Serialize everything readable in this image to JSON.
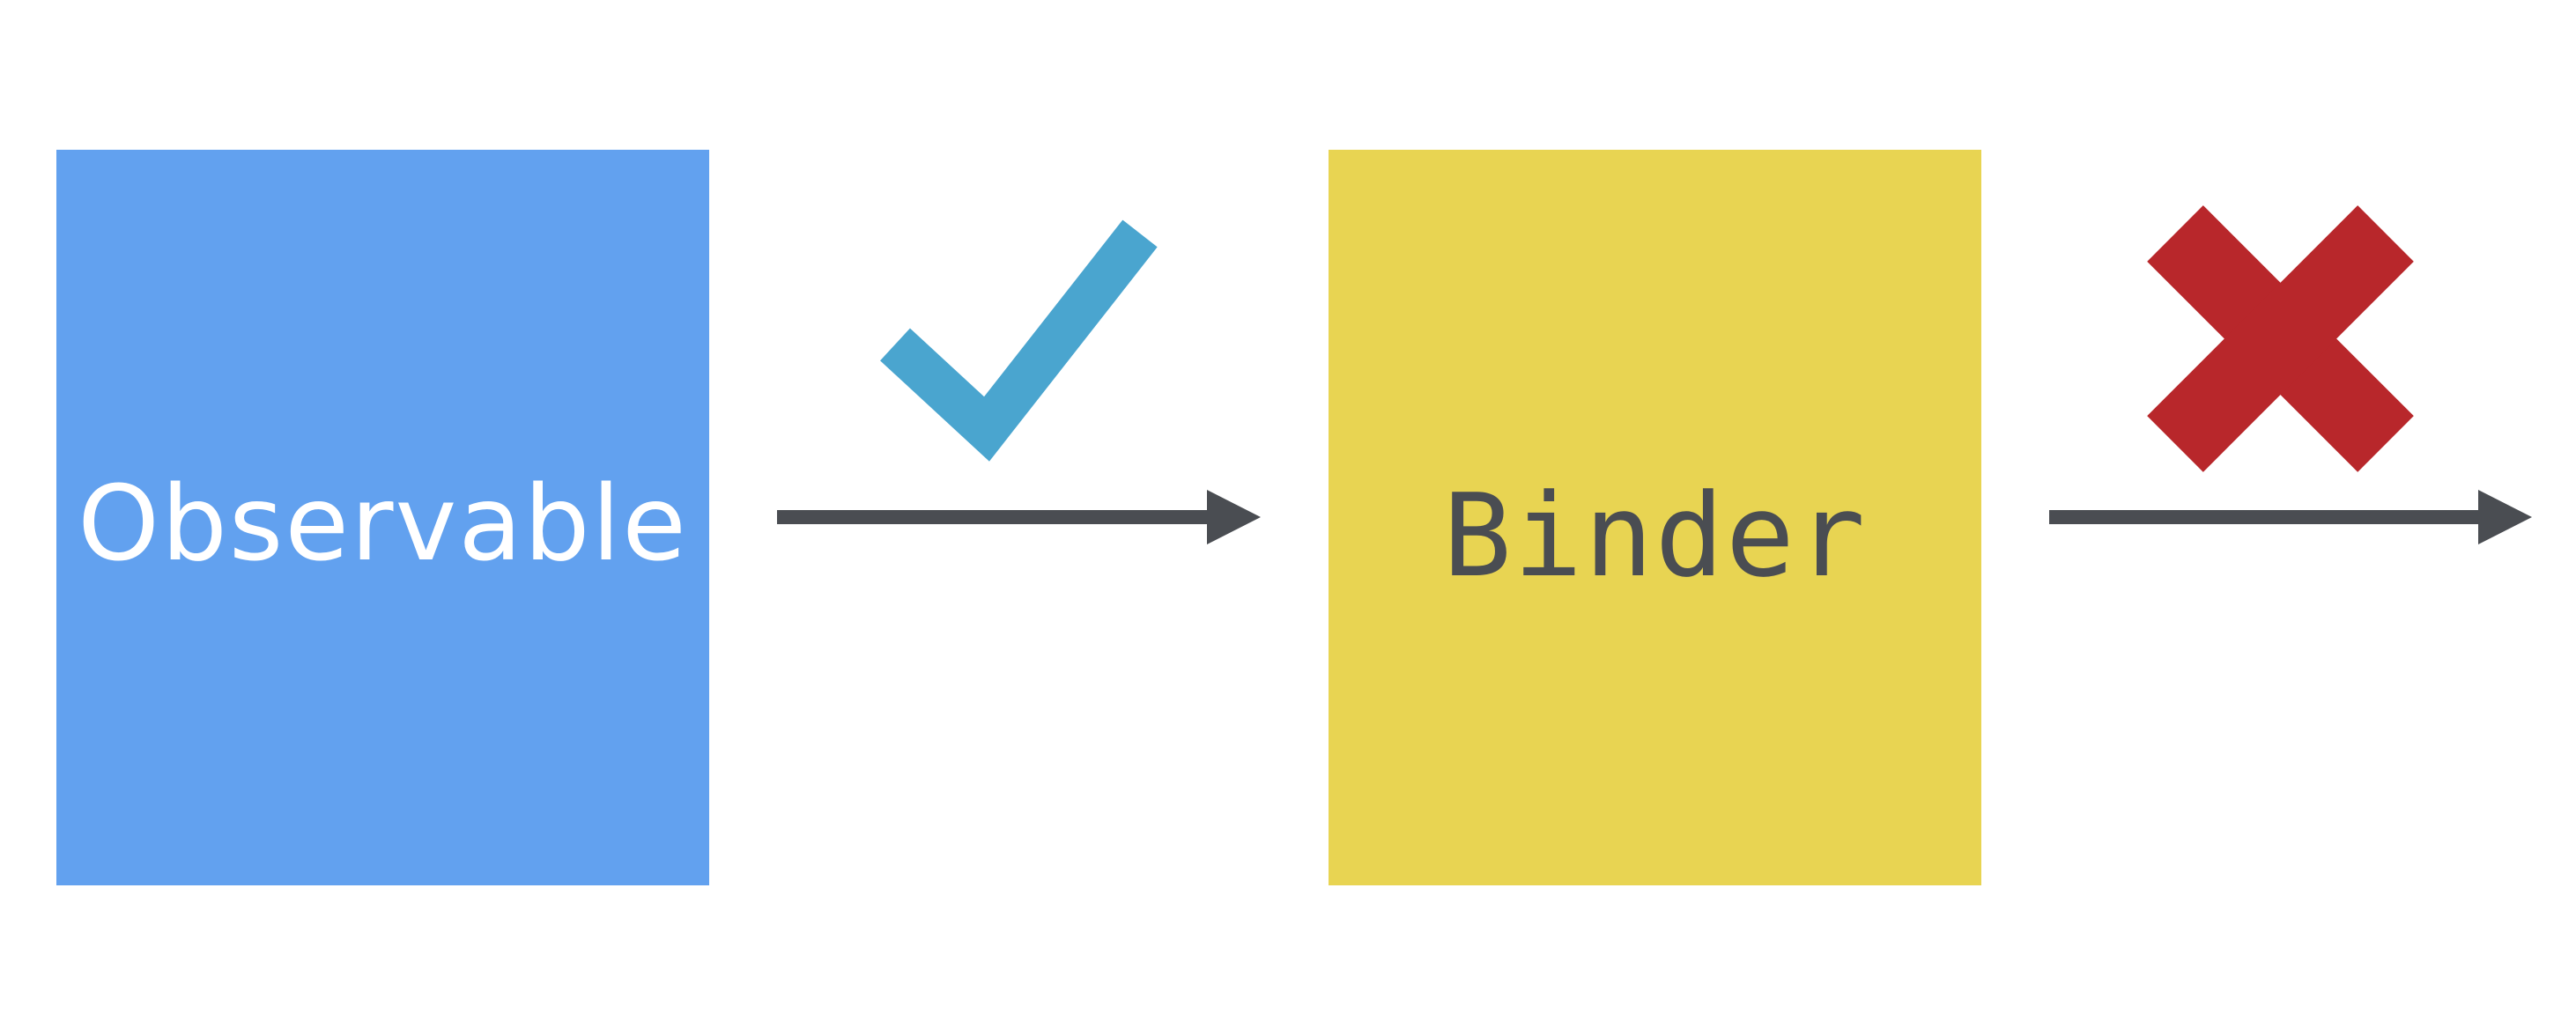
{
  "diagram": {
    "source": {
      "label": "Observable",
      "fill": "#62a1ef",
      "text_color": "#ffffff"
    },
    "target": {
      "label": "Binder",
      "fill": "#e8d452",
      "text_color": "#4a4d52"
    },
    "connections": [
      {
        "from": "Observable",
        "to": "Binder",
        "status": "allowed",
        "icon": "checkmark-icon",
        "color": "#4aa5cf"
      },
      {
        "from": "Binder",
        "to": "outside",
        "status": "not-allowed",
        "icon": "cross-icon",
        "color": "#b8272b"
      }
    ],
    "arrow_color": "#4a4d52"
  }
}
